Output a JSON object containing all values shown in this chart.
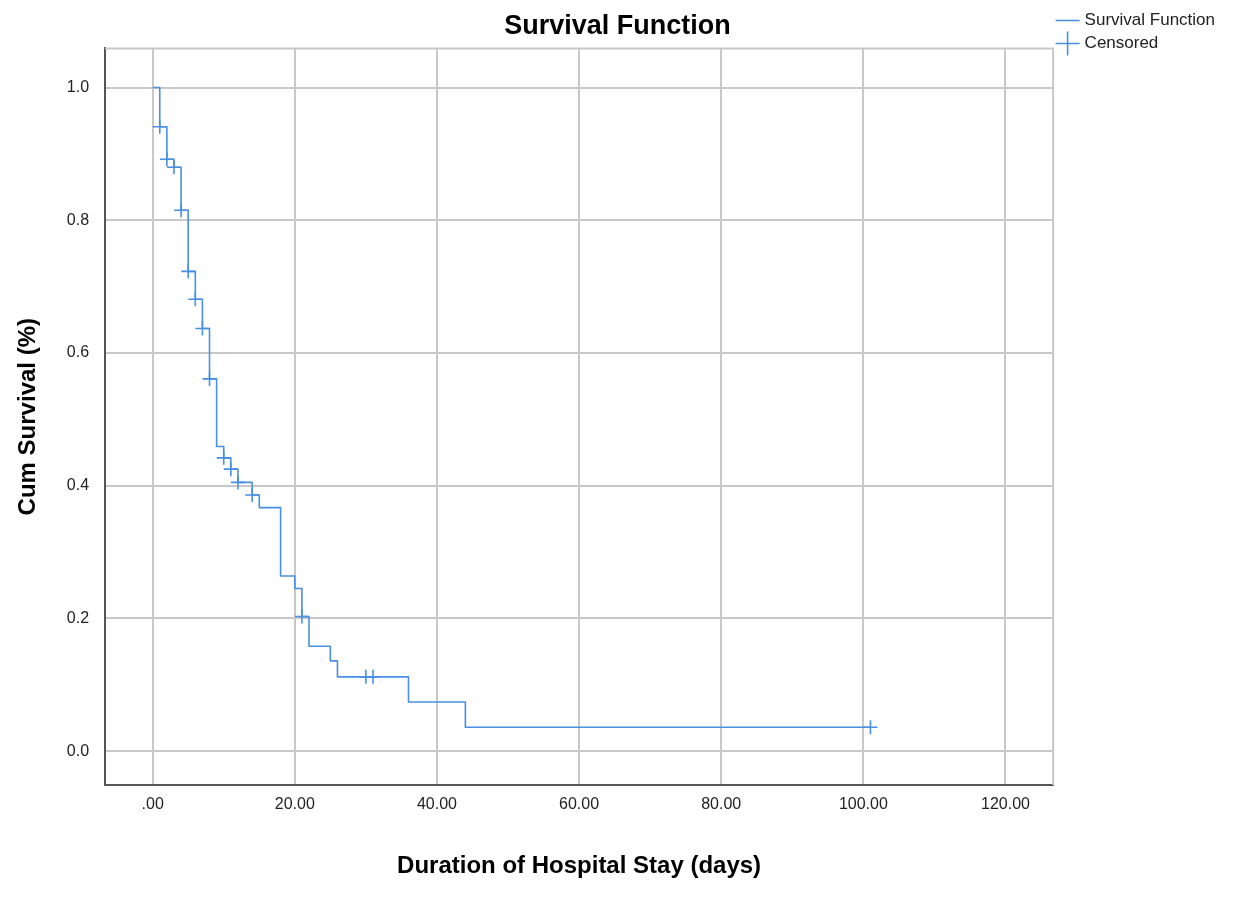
{
  "chart_data": {
    "type": "step",
    "title": "Survival Function",
    "xlabel": "Duration of Hospital Stay (days)",
    "ylabel": "Cum Survival (%)",
    "series": [
      {
        "name": "Survival Function",
        "type": "step",
        "color": "#4a90e2",
        "x": [
          0,
          1,
          2,
          3,
          4,
          5,
          6,
          7,
          8,
          9,
          10,
          11,
          12,
          14,
          15,
          18,
          20,
          21,
          22,
          25,
          26,
          36,
          44,
          101
        ],
        "values": [
          1.0,
          0.941,
          0.892,
          0.88,
          0.815,
          0.723,
          0.681,
          0.637,
          0.561,
          0.459,
          0.442,
          0.425,
          0.405,
          0.386,
          0.367,
          0.264,
          0.245,
          0.203,
          0.158,
          0.136,
          0.112,
          0.074,
          0.036,
          0.036
        ]
      },
      {
        "name": "Censored",
        "type": "scatter",
        "marker": "cross",
        "color": "#4a90e2",
        "x": [
          1,
          2,
          3,
          4,
          5,
          6,
          7,
          8,
          10,
          11,
          12,
          14,
          21,
          30,
          31,
          101
        ],
        "values": [
          0.941,
          0.892,
          0.88,
          0.815,
          0.723,
          0.681,
          0.637,
          0.561,
          0.442,
          0.425,
          0.405,
          0.386,
          0.203,
          0.112,
          0.112,
          0.036
        ]
      }
    ],
    "xlim": [
      -6.7,
      126.7
    ],
    "ylim": [
      -0.051,
      1.059
    ],
    "xticks": [
      {
        "value": 0,
        "label": ".00"
      },
      {
        "value": 20,
        "label": "20.00"
      },
      {
        "value": 40,
        "label": "40.00"
      },
      {
        "value": 60,
        "label": "60.00"
      },
      {
        "value": 80,
        "label": "80.00"
      },
      {
        "value": 100,
        "label": "100.00"
      },
      {
        "value": 120,
        "label": "120.00"
      }
    ],
    "yticks": [
      {
        "value": 0,
        "label": "0.0"
      },
      {
        "value": 0.2,
        "label": "0.2"
      },
      {
        "value": 0.4,
        "label": "0.4"
      },
      {
        "value": 0.6,
        "label": "0.6"
      },
      {
        "value": 0.8,
        "label": "0.8"
      },
      {
        "value": 1,
        "label": "1.0"
      }
    ],
    "grid": true,
    "legend": "top right"
  }
}
